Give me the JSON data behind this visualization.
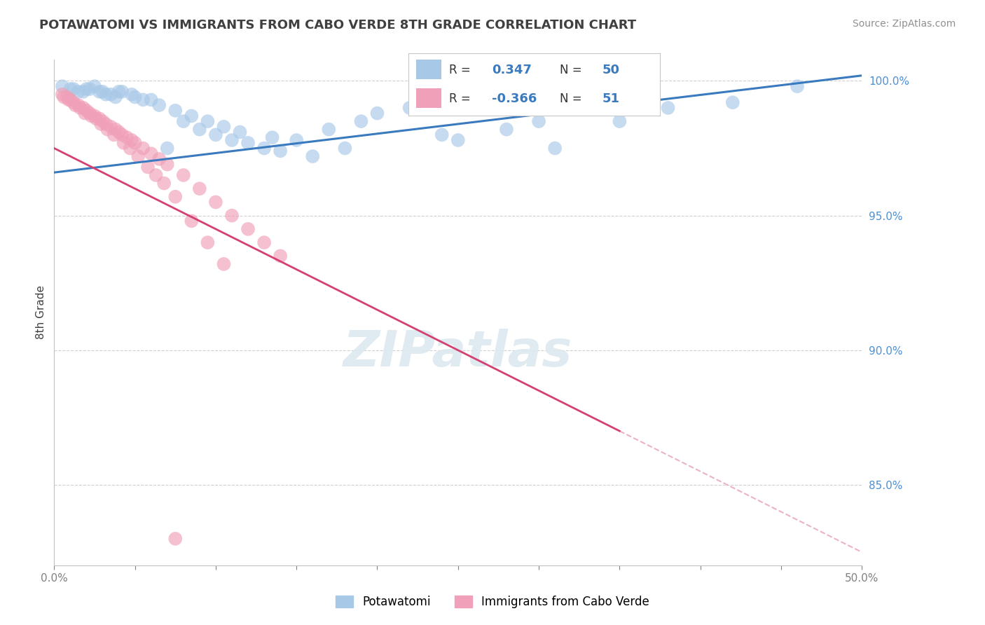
{
  "title": "POTAWATOMI VS IMMIGRANTS FROM CABO VERDE 8TH GRADE CORRELATION CHART",
  "source": "Source: ZipAtlas.com",
  "ylabel": "8th Grade",
  "blue_R": 0.347,
  "blue_N": 50,
  "pink_R": -0.366,
  "pink_N": 51,
  "xlim": [
    0.0,
    0.5
  ],
  "ylim": [
    0.82,
    1.008
  ],
  "yticks": [
    0.85,
    0.9,
    0.95,
    1.0
  ],
  "yticklabels": [
    "85.0%",
    "90.0%",
    "95.0%",
    "100.0%"
  ],
  "xticks": [
    0.0,
    0.05,
    0.1,
    0.15,
    0.2,
    0.25,
    0.3,
    0.35,
    0.4,
    0.45,
    0.5
  ],
  "xticklabels_show": [
    "0.0%",
    "",
    "",
    "",
    "",
    "",
    "",
    "",
    "",
    "",
    "50.0%"
  ],
  "blue_color": "#a8c8e8",
  "pink_color": "#f0a0b8",
  "blue_line_color": "#3a7abf",
  "pink_line_color": "#d44070",
  "pink_dash_color": "#e8a0b8",
  "background_color": "#ffffff",
  "grid_color": "#d0d0d0",
  "title_color": "#404040",
  "source_color": "#909090",
  "watermark_color": "#dce8f0",
  "blue_x": [
    0.005,
    0.01,
    0.015,
    0.02,
    0.025,
    0.03,
    0.035,
    0.04,
    0.05,
    0.06,
    0.07,
    0.08,
    0.09,
    0.1,
    0.11,
    0.12,
    0.13,
    0.14,
    0.15,
    0.17,
    0.19,
    0.2,
    0.22,
    0.25,
    0.28,
    0.31,
    0.35,
    0.38,
    0.42,
    0.46,
    0.012,
    0.018,
    0.022,
    0.028,
    0.032,
    0.038,
    0.042,
    0.048,
    0.055,
    0.065,
    0.075,
    0.085,
    0.095,
    0.105,
    0.115,
    0.135,
    0.16,
    0.18,
    0.24,
    0.3
  ],
  "blue_y": [
    0.998,
    0.997,
    0.996,
    0.997,
    0.998,
    0.996,
    0.995,
    0.996,
    0.994,
    0.993,
    0.975,
    0.985,
    0.982,
    0.98,
    0.978,
    0.977,
    0.975,
    0.974,
    0.978,
    0.982,
    0.985,
    0.988,
    0.99,
    0.978,
    0.982,
    0.975,
    0.985,
    0.99,
    0.992,
    0.998,
    0.997,
    0.996,
    0.997,
    0.996,
    0.995,
    0.994,
    0.996,
    0.995,
    0.993,
    0.991,
    0.989,
    0.987,
    0.985,
    0.983,
    0.981,
    0.979,
    0.972,
    0.975,
    0.98,
    0.985
  ],
  "pink_x": [
    0.005,
    0.008,
    0.01,
    0.012,
    0.015,
    0.018,
    0.02,
    0.022,
    0.025,
    0.028,
    0.03,
    0.032,
    0.035,
    0.038,
    0.04,
    0.042,
    0.045,
    0.048,
    0.05,
    0.055,
    0.06,
    0.065,
    0.07,
    0.08,
    0.09,
    0.1,
    0.11,
    0.12,
    0.13,
    0.14,
    0.006,
    0.009,
    0.013,
    0.016,
    0.019,
    0.023,
    0.026,
    0.029,
    0.033,
    0.037,
    0.043,
    0.047,
    0.052,
    0.058,
    0.063,
    0.068,
    0.075,
    0.085,
    0.095,
    0.105,
    0.075
  ],
  "pink_y": [
    0.995,
    0.994,
    0.993,
    0.992,
    0.991,
    0.99,
    0.989,
    0.988,
    0.987,
    0.986,
    0.985,
    0.984,
    0.983,
    0.982,
    0.981,
    0.98,
    0.979,
    0.978,
    0.977,
    0.975,
    0.973,
    0.971,
    0.969,
    0.965,
    0.96,
    0.955,
    0.95,
    0.945,
    0.94,
    0.935,
    0.994,
    0.993,
    0.991,
    0.99,
    0.988,
    0.987,
    0.986,
    0.984,
    0.982,
    0.98,
    0.977,
    0.975,
    0.972,
    0.968,
    0.965,
    0.962,
    0.957,
    0.948,
    0.94,
    0.932,
    0.83
  ]
}
